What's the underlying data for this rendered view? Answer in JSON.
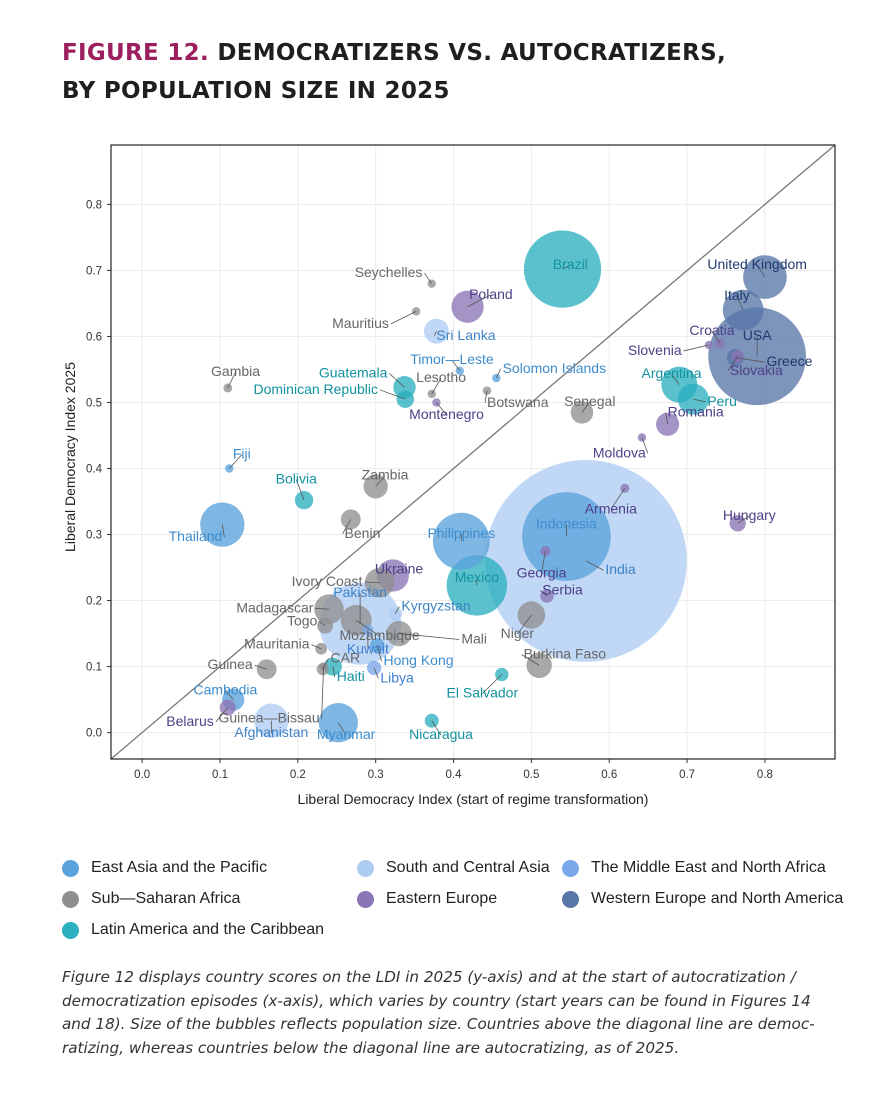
{
  "figure": {
    "label": "FIGURE 12.",
    "title_line1": "DEMOCRATIZERS VS. AUTOCRATIZERS,",
    "title_line2": "BY POPULATION SIZE IN 2025"
  },
  "regions": [
    {
      "key": "eap",
      "name": "East Asia and the Pacific",
      "color": "#5ba3dd",
      "label_color": "#3d8ccc"
    },
    {
      "key": "ssa",
      "name": "Sub—Saharan Africa",
      "color": "#8f8f8f",
      "label_color": "#666666"
    },
    {
      "key": "lac",
      "name": "Latin America and the Caribbean",
      "color": "#2bb0bf",
      "label_color": "#12929f"
    },
    {
      "key": "sca",
      "name": "South and Central Asia",
      "color": "#aecdf2",
      "label_color": "#3f83c6"
    },
    {
      "key": "ee",
      "name": "Eastern Europe",
      "color": "#8a75b5",
      "label_color": "#4e3f86"
    },
    {
      "key": "mena",
      "name": "The Middle East and North Africa",
      "color": "#7aa7ea",
      "label_color": "#3f7fd2"
    },
    {
      "key": "wena",
      "name": "Western Europe and North America",
      "color": "#5876a8",
      "label_color": "#203a6e"
    }
  ],
  "chart_data": {
    "type": "scatter",
    "title": "Democratizers vs. Autocratizers, by population size in 2025",
    "xlabel": "Liberal Democracy Index (start of regime transformation)",
    "ylabel": "Liberal Democracy Index 2025",
    "xlim": [
      -0.04,
      0.89
    ],
    "ylim": [
      -0.04,
      0.89
    ],
    "xticks": [
      "0.0",
      "0.1",
      "0.2",
      "0.3",
      "0.4",
      "0.5",
      "0.6",
      "0.7",
      "0.8"
    ],
    "yticks": [
      "0.0",
      "0.1",
      "0.2",
      "0.3",
      "0.4",
      "0.5",
      "0.6",
      "0.7",
      "0.8"
    ],
    "grid": true,
    "diagonal": true,
    "size_encoding": "population",
    "points": [
      {
        "name": "India",
        "region": "sca",
        "x": 0.57,
        "y": 0.26,
        "pop": 1450,
        "label": "India",
        "anchor": "start",
        "ldx": 0.025,
        "ldy": -0.02
      },
      {
        "name": "Indonesia",
        "region": "eap",
        "x": 0.545,
        "y": 0.297,
        "pop": 280,
        "label": "Indonesia",
        "anchor": "middle",
        "ldx": 0.0,
        "ldy": 0.012
      },
      {
        "name": "Brazil",
        "region": "lac",
        "x": 0.54,
        "y": 0.702,
        "pop": 212,
        "label": "Brazil",
        "anchor": "middle",
        "ldx": 0.01,
        "ldy": 0.0
      },
      {
        "name": "United States",
        "region": "wena",
        "x": 0.79,
        "y": 0.57,
        "pop": 340,
        "label": "USA",
        "anchor": "middle",
        "ldx": 0.0,
        "ldy": 0.025
      },
      {
        "name": "Pakistan",
        "region": "sca",
        "x": 0.28,
        "y": 0.165,
        "pop": 240,
        "label": "Pakistan",
        "anchor": "middle",
        "ldx": 0.0,
        "ldy": 0.04
      },
      {
        "name": "Philippines",
        "region": "eap",
        "x": 0.41,
        "y": 0.29,
        "pop": 115,
        "label": "Philippines",
        "anchor": "middle",
        "ldx": 0.0,
        "ldy": 0.005
      },
      {
        "name": "Mexico",
        "region": "lac",
        "x": 0.43,
        "y": 0.223,
        "pop": 130,
        "label": "Mexico",
        "anchor": "middle",
        "ldx": 0.0,
        "ldy": 0.005
      },
      {
        "name": "Thailand",
        "region": "eap",
        "x": 0.103,
        "y": 0.315,
        "pop": 70,
        "label": "Thailand",
        "anchor": "end",
        "ldx": 0.0,
        "ldy": -0.025
      },
      {
        "name": "Myanmar",
        "region": "eap",
        "x": 0.252,
        "y": 0.015,
        "pop": 55,
        "label": "Myanmar",
        "anchor": "middle",
        "ldx": 0.01,
        "ldy": -0.025
      },
      {
        "name": "United Kingdom",
        "region": "wena",
        "x": 0.8,
        "y": 0.69,
        "pop": 68,
        "label": "United Kingdom",
        "anchor": "middle",
        "ldx": -0.01,
        "ldy": 0.012
      },
      {
        "name": "Italy",
        "region": "wena",
        "x": 0.772,
        "y": 0.64,
        "pop": 59,
        "label": "Italy",
        "anchor": "middle",
        "ldx": -0.008,
        "ldy": 0.015
      },
      {
        "name": "Afghanistan",
        "region": "sca",
        "x": 0.166,
        "y": 0.018,
        "pop": 42,
        "label": "Afghanistan",
        "anchor": "middle",
        "ldx": 0.0,
        "ldy": -0.025
      },
      {
        "name": "Poland",
        "region": "ee",
        "x": 0.418,
        "y": 0.645,
        "pop": 37,
        "label": "Poland",
        "anchor": "middle",
        "ldx": 0.03,
        "ldy": 0.012
      },
      {
        "name": "Argentina",
        "region": "lac",
        "x": 0.69,
        "y": 0.527,
        "pop": 46,
        "label": "Argentina",
        "anchor": "middle",
        "ldx": -0.01,
        "ldy": 0.01
      },
      {
        "name": "Peru",
        "region": "lac",
        "x": 0.708,
        "y": 0.505,
        "pop": 34,
        "label": "Peru",
        "anchor": "start",
        "ldx": 0.018,
        "ldy": -0.01
      },
      {
        "name": "Ivory Coast",
        "region": "ssa",
        "x": 0.305,
        "y": 0.227,
        "pop": 31,
        "label": "Ivory Coast",
        "anchor": "end",
        "ldx": -0.022,
        "ldy": -0.005
      },
      {
        "name": "Ukraine",
        "region": "ee",
        "x": 0.322,
        "y": 0.238,
        "pop": 37,
        "label": "Ukraine",
        "anchor": "middle",
        "ldx": 0.008,
        "ldy": 0.003
      },
      {
        "name": "Madagascar",
        "region": "ssa",
        "x": 0.24,
        "y": 0.187,
        "pop": 31,
        "label": "Madagascar",
        "anchor": "end",
        "ldx": -0.02,
        "ldy": -0.005
      },
      {
        "name": "Mozambique",
        "region": "ssa",
        "x": 0.275,
        "y": 0.17,
        "pop": 34,
        "label": "Mozambique",
        "anchor": "middle",
        "ldx": 0.03,
        "ldy": -0.03
      },
      {
        "name": "Mali",
        "region": "ssa",
        "x": 0.33,
        "y": 0.15,
        "pop": 23,
        "label": "Mali",
        "anchor": "start",
        "ldx": 0.08,
        "ldy": -0.015,
        "leader": true
      },
      {
        "name": "Niger",
        "region": "ssa",
        "x": 0.5,
        "y": 0.178,
        "pop": 27,
        "label": "Niger",
        "anchor": "middle",
        "ldx": -0.018,
        "ldy": -0.035
      },
      {
        "name": "Burkina Faso",
        "region": "ssa",
        "x": 0.51,
        "y": 0.102,
        "pop": 23,
        "label": "Burkina Faso",
        "anchor": "start",
        "ldx": -0.02,
        "ldy": 0.01
      },
      {
        "name": "Senegal",
        "region": "ssa",
        "x": 0.565,
        "y": 0.485,
        "pop": 18,
        "label": "Senegal",
        "anchor": "middle",
        "ldx": 0.01,
        "ldy": 0.01
      },
      {
        "name": "Zambia",
        "region": "ssa",
        "x": 0.3,
        "y": 0.373,
        "pop": 21,
        "label": "Zambia",
        "anchor": "middle",
        "ldx": 0.012,
        "ldy": 0.01
      },
      {
        "name": "Benin",
        "region": "ssa",
        "x": 0.268,
        "y": 0.323,
        "pop": 14,
        "label": "Benin",
        "anchor": "start",
        "ldx": -0.008,
        "ldy": -0.028
      },
      {
        "name": "Guinea",
        "region": "ssa",
        "x": 0.16,
        "y": 0.096,
        "pop": 14,
        "label": "Guinea",
        "anchor": "end",
        "ldx": -0.018,
        "ldy": 0.0
      },
      {
        "name": "Kyrgyzstan",
        "region": "sca",
        "x": 0.325,
        "y": 0.18,
        "pop": 7,
        "label": "Kyrgyzstan",
        "anchor": "start",
        "ldx": 0.008,
        "ldy": 0.005
      },
      {
        "name": "Hungary",
        "region": "ee",
        "x": 0.765,
        "y": 0.317,
        "pop": 9.6,
        "label": "Hungary",
        "anchor": "middle",
        "ldx": 0.015,
        "ldy": 0.005
      },
      {
        "name": "Serbia",
        "region": "ee",
        "x": 0.52,
        "y": 0.207,
        "pop": 6.6,
        "label": "Serbia",
        "anchor": "start",
        "ldx": -0.006,
        "ldy": 0.002
      },
      {
        "name": "Georgia",
        "region": "ee",
        "x": 0.518,
        "y": 0.275,
        "pop": 3.7,
        "label": "Georgia",
        "anchor": "middle",
        "ldx": -0.005,
        "ldy": -0.04
      },
      {
        "name": "Armenia",
        "region": "ee",
        "x": 0.62,
        "y": 0.37,
        "pop": 3,
        "label": "Armenia",
        "anchor": "middle",
        "ldx": -0.018,
        "ldy": -0.038
      },
      {
        "name": "Moldova",
        "region": "ee",
        "x": 0.642,
        "y": 0.447,
        "pop": 2.5,
        "label": "Moldova",
        "anchor": "end",
        "ldx": 0.005,
        "ldy": -0.03
      },
      {
        "name": "Romania",
        "region": "ee",
        "x": 0.675,
        "y": 0.467,
        "pop": 19,
        "label": "Romania",
        "anchor": "start",
        "ldx": 0.0,
        "ldy": 0.012
      },
      {
        "name": "Slovakia",
        "region": "ee",
        "x": 0.765,
        "y": 0.57,
        "pop": 5.4,
        "label": "Slovakia",
        "anchor": "start",
        "ldx": -0.01,
        "ldy": -0.028
      },
      {
        "name": "Croatia",
        "region": "ee",
        "x": 0.742,
        "y": 0.59,
        "pop": 3.9,
        "label": "Croatia",
        "anchor": "middle",
        "ldx": -0.01,
        "ldy": 0.012
      },
      {
        "name": "Slovenia",
        "region": "ee",
        "x": 0.728,
        "y": 0.587,
        "pop": 2.1,
        "label": "Slovenia",
        "anchor": "end",
        "ldx": -0.035,
        "ldy": -0.015
      },
      {
        "name": "Greece",
        "region": "wena",
        "x": 0.762,
        "y": 0.568,
        "pop": 10.4,
        "label": "Greece",
        "anchor": "start",
        "ldx": 0.04,
        "ldy": -0.013,
        "leader": true
      },
      {
        "name": "Seychelles",
        "region": "ssa",
        "x": 0.372,
        "y": 0.68,
        "pop": 0.13,
        "label": "Seychelles",
        "anchor": "end",
        "ldx": -0.012,
        "ldy": 0.01
      },
      {
        "name": "Mauritius",
        "region": "ssa",
        "x": 0.352,
        "y": 0.638,
        "pop": 1.3,
        "label": "Mauritius",
        "anchor": "end",
        "ldx": -0.035,
        "ldy": -0.025
      },
      {
        "name": "Sri Lanka",
        "region": "sca",
        "x": 0.378,
        "y": 0.608,
        "pop": 22,
        "label": "Sri Lanka",
        "anchor": "start",
        "ldx": 0.0,
        "ldy": -0.013
      },
      {
        "name": "Timor-Leste",
        "region": "eap",
        "x": 0.408,
        "y": 0.548,
        "pop": 1.4,
        "label": "Timor—Leste",
        "anchor": "middle",
        "ldx": -0.01,
        "ldy": 0.01
      },
      {
        "name": "Solomon Islands",
        "region": "eap",
        "x": 0.455,
        "y": 0.537,
        "pop": 0.8,
        "label": "Solomon Islands",
        "anchor": "start",
        "ldx": 0.008,
        "ldy": 0.008
      },
      {
        "name": "Gambia",
        "region": "ssa",
        "x": 0.11,
        "y": 0.522,
        "pop": 2.8,
        "label": "Gambia",
        "anchor": "middle",
        "ldx": 0.01,
        "ldy": 0.018
      },
      {
        "name": "Guatemala",
        "region": "lac",
        "x": 0.337,
        "y": 0.523,
        "pop": 18,
        "label": "Guatemala",
        "anchor": "end",
        "ldx": -0.022,
        "ldy": 0.015
      },
      {
        "name": "Lesotho",
        "region": "ssa",
        "x": 0.372,
        "y": 0.513,
        "pop": 2.3,
        "label": "Lesotho",
        "anchor": "middle",
        "ldx": 0.012,
        "ldy": 0.018
      },
      {
        "name": "Botswana",
        "region": "ssa",
        "x": 0.443,
        "y": 0.518,
        "pop": 2.6,
        "label": "Botswana",
        "anchor": "start",
        "ldx": 0.0,
        "ldy": -0.025
      },
      {
        "name": "Dominican Republic",
        "region": "lac",
        "x": 0.338,
        "y": 0.505,
        "pop": 11,
        "label": "Dominican Republic",
        "anchor": "end",
        "ldx": -0.035,
        "ldy": 0.008
      },
      {
        "name": "Montenegro",
        "region": "ee",
        "x": 0.378,
        "y": 0.5,
        "pop": 0.6,
        "label": "Montenegro",
        "anchor": "middle",
        "ldx": 0.013,
        "ldy": -0.025
      },
      {
        "name": "Fiji",
        "region": "eap",
        "x": 0.112,
        "y": 0.4,
        "pop": 0.9,
        "label": "Fiji",
        "anchor": "middle",
        "ldx": 0.016,
        "ldy": 0.015
      },
      {
        "name": "Bolivia",
        "region": "lac",
        "x": 0.208,
        "y": 0.352,
        "pop": 12,
        "label": "Bolivia",
        "anchor": "middle",
        "ldx": -0.01,
        "ldy": 0.025
      },
      {
        "name": "Togo",
        "region": "ssa",
        "x": 0.235,
        "y": 0.162,
        "pop": 9,
        "label": "Togo",
        "anchor": "end",
        "ldx": -0.01,
        "ldy": 0.0
      },
      {
        "name": "Kuwait",
        "region": "mena",
        "x": 0.29,
        "y": 0.155,
        "pop": 4.3,
        "label": "Kuwait",
        "anchor": "middle",
        "ldx": 0.0,
        "ldy": -0.035
      },
      {
        "name": "Mauritania",
        "region": "ssa",
        "x": 0.23,
        "y": 0.127,
        "pop": 4.9,
        "label": "Mauritania",
        "anchor": "end",
        "ldx": -0.015,
        "ldy": 0.0
      },
      {
        "name": "CAR",
        "region": "ssa",
        "x": 0.232,
        "y": 0.096,
        "pop": 5.3,
        "label": "CAR",
        "anchor": "start",
        "ldx": 0.01,
        "ldy": 0.01
      },
      {
        "name": "Haiti",
        "region": "lac",
        "x": 0.245,
        "y": 0.1,
        "pop": 11.7,
        "label": "Haiti",
        "anchor": "start",
        "ldx": 0.005,
        "ldy": -0.022
      },
      {
        "name": "Hong Kong",
        "region": "eap",
        "x": 0.302,
        "y": 0.132,
        "pop": 7.5,
        "label": "Hong Kong",
        "anchor": "start",
        "ldx": 0.008,
        "ldy": -0.03
      },
      {
        "name": "Libya",
        "region": "mena",
        "x": 0.298,
        "y": 0.098,
        "pop": 7.3,
        "label": "Libya",
        "anchor": "start",
        "ldx": 0.008,
        "ldy": -0.022
      },
      {
        "name": "Guinea-Bissau",
        "region": "ssa",
        "x": 0.233,
        "y": 0.1,
        "pop": 2.2,
        "label": "Guinea—Bissau",
        "anchor": "end",
        "ldx": -0.005,
        "ldy": -0.085,
        "leader": true
      },
      {
        "name": "El Salvador",
        "region": "lac",
        "x": 0.462,
        "y": 0.088,
        "pop": 6.3,
        "label": "El Salvador",
        "anchor": "middle",
        "ldx": -0.025,
        "ldy": -0.035
      },
      {
        "name": "Nicaragua",
        "region": "lac",
        "x": 0.372,
        "y": 0.018,
        "pop": 6.9,
        "label": "Nicaragua",
        "anchor": "middle",
        "ldx": 0.012,
        "ldy": -0.028
      },
      {
        "name": "Cambodia",
        "region": "eap",
        "x": 0.117,
        "y": 0.05,
        "pop": 17.6,
        "label": "Cambodia",
        "anchor": "middle",
        "ldx": -0.01,
        "ldy": 0.008
      },
      {
        "name": "Belarus",
        "region": "ee",
        "x": 0.11,
        "y": 0.038,
        "pop": 9.2,
        "label": "Belarus",
        "anchor": "end",
        "ldx": -0.018,
        "ldy": -0.028
      }
    ]
  },
  "legend": [
    {
      "key": "eap",
      "label": "East Asia and the Pacific",
      "color": "#5ba3dd"
    },
    {
      "key": "sca",
      "label": "South and Central Asia",
      "color": "#aecdf2"
    },
    {
      "key": "mena",
      "label": "The Middle East and North Africa",
      "color": "#7aa7ea"
    },
    {
      "key": "ssa",
      "label": "Sub—Saharan Africa",
      "color": "#8f8f8f"
    },
    {
      "key": "ee",
      "label": "Eastern Europe",
      "color": "#8a75b5"
    },
    {
      "key": "wena",
      "label": "Western Europe and North America",
      "color": "#5876a8"
    },
    {
      "key": "lac",
      "label": "Latin America and the Caribbean",
      "color": "#2bb0bf"
    }
  ],
  "caption": "Figure 12 displays country scores on the LDI in 2025 (y-axis) and at the start of autocratization / democratization episodes (x-axis), which varies by country (start years can be found in Figures 14 and 18). Size of the bubbles reflects population size. Countries above the diagonal line are democ-ratizing, whereas countries below the diagonal line are autocratizing, as of 2025."
}
